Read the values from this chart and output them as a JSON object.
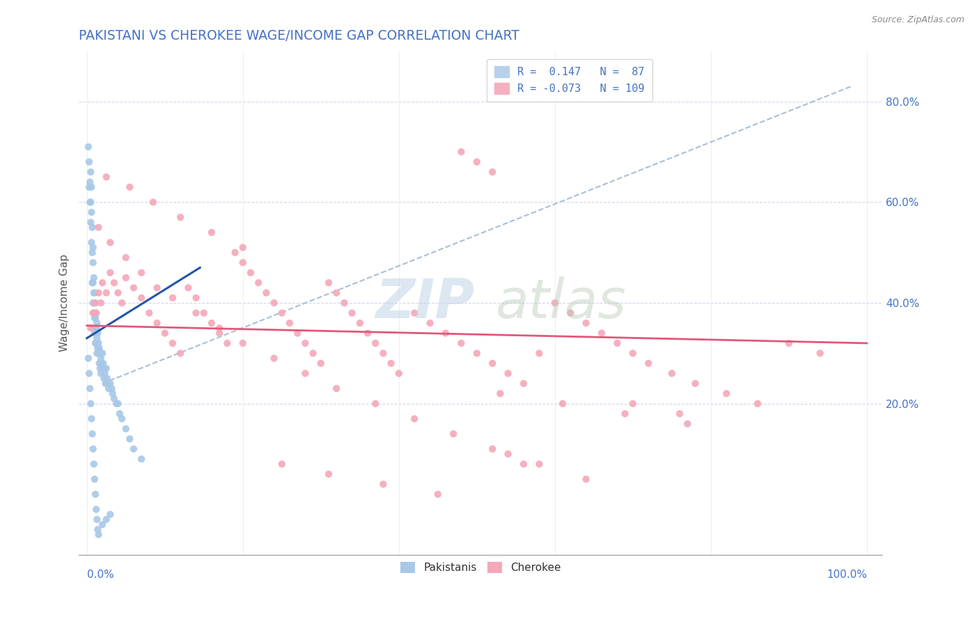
{
  "title": "PAKISTANI VS CHEROKEE WAGE/INCOME GAP CORRELATION CHART",
  "source_text": "Source: ZipAtlas.com",
  "ylabel": "Wage/Income Gap",
  "blue_R": 0.147,
  "blue_N": 87,
  "pink_R": -0.073,
  "pink_N": 109,
  "blue_scatter_color": "#a8c8e8",
  "pink_scatter_color": "#f4a8b8",
  "blue_line_color": "#2255aa",
  "pink_line_color": "#e05878",
  "dash_line_color": "#a0b8d0",
  "watermark_zip_color": "#b8cce0",
  "watermark_atlas_color": "#b0c8b0",
  "ytick_vals": [
    0.2,
    0.4,
    0.6,
    0.8
  ],
  "ytick_labels": [
    "20.0%",
    "40.0%",
    "60.0%",
    "80.0%"
  ],
  "xlim": [
    -0.01,
    1.02
  ],
  "ylim": [
    -0.1,
    0.9
  ],
  "blue_x": [
    0.002,
    0.003,
    0.003,
    0.004,
    0.004,
    0.005,
    0.005,
    0.005,
    0.006,
    0.006,
    0.006,
    0.007,
    0.007,
    0.007,
    0.008,
    0.008,
    0.008,
    0.008,
    0.009,
    0.009,
    0.009,
    0.01,
    0.01,
    0.01,
    0.01,
    0.011,
    0.011,
    0.011,
    0.011,
    0.012,
    0.012,
    0.012,
    0.013,
    0.013,
    0.013,
    0.014,
    0.014,
    0.015,
    0.015,
    0.016,
    0.016,
    0.017,
    0.017,
    0.018,
    0.018,
    0.019,
    0.02,
    0.02,
    0.021,
    0.022,
    0.022,
    0.023,
    0.024,
    0.025,
    0.025,
    0.026,
    0.027,
    0.028,
    0.03,
    0.032,
    0.033,
    0.035,
    0.038,
    0.04,
    0.042,
    0.045,
    0.05,
    0.055,
    0.06,
    0.07,
    0.002,
    0.003,
    0.004,
    0.005,
    0.006,
    0.007,
    0.008,
    0.009,
    0.01,
    0.011,
    0.012,
    0.013,
    0.014,
    0.015,
    0.02,
    0.025,
    0.03
  ],
  "blue_y": [
    0.71,
    0.68,
    0.63,
    0.64,
    0.6,
    0.66,
    0.6,
    0.56,
    0.63,
    0.58,
    0.52,
    0.55,
    0.5,
    0.44,
    0.51,
    0.48,
    0.44,
    0.4,
    0.45,
    0.42,
    0.38,
    0.42,
    0.4,
    0.37,
    0.34,
    0.4,
    0.37,
    0.35,
    0.32,
    0.38,
    0.35,
    0.32,
    0.36,
    0.33,
    0.3,
    0.34,
    0.31,
    0.32,
    0.3,
    0.31,
    0.28,
    0.3,
    0.27,
    0.29,
    0.26,
    0.28,
    0.3,
    0.27,
    0.28,
    0.27,
    0.25,
    0.26,
    0.24,
    0.27,
    0.24,
    0.25,
    0.24,
    0.23,
    0.24,
    0.23,
    0.22,
    0.21,
    0.2,
    0.2,
    0.18,
    0.17,
    0.15,
    0.13,
    0.11,
    0.09,
    0.29,
    0.26,
    0.23,
    0.2,
    0.17,
    0.14,
    0.11,
    0.08,
    0.05,
    0.02,
    -0.01,
    -0.03,
    -0.05,
    -0.06,
    -0.04,
    -0.03,
    -0.02
  ],
  "pink_x": [
    0.005,
    0.008,
    0.01,
    0.012,
    0.015,
    0.018,
    0.02,
    0.025,
    0.03,
    0.035,
    0.04,
    0.045,
    0.05,
    0.06,
    0.07,
    0.08,
    0.09,
    0.1,
    0.11,
    0.12,
    0.13,
    0.14,
    0.15,
    0.16,
    0.17,
    0.18,
    0.19,
    0.2,
    0.21,
    0.22,
    0.23,
    0.24,
    0.25,
    0.26,
    0.27,
    0.28,
    0.29,
    0.3,
    0.31,
    0.32,
    0.33,
    0.34,
    0.35,
    0.36,
    0.37,
    0.38,
    0.39,
    0.4,
    0.42,
    0.44,
    0.46,
    0.48,
    0.5,
    0.52,
    0.54,
    0.56,
    0.58,
    0.6,
    0.62,
    0.64,
    0.66,
    0.68,
    0.7,
    0.72,
    0.75,
    0.78,
    0.82,
    0.86,
    0.9,
    0.94,
    0.015,
    0.03,
    0.05,
    0.07,
    0.09,
    0.11,
    0.14,
    0.17,
    0.2,
    0.24,
    0.28,
    0.32,
    0.37,
    0.42,
    0.47,
    0.52,
    0.58,
    0.64,
    0.7,
    0.76,
    0.025,
    0.055,
    0.085,
    0.12,
    0.16,
    0.2,
    0.25,
    0.31,
    0.38,
    0.45,
    0.53,
    0.61,
    0.69,
    0.77,
    0.48,
    0.5,
    0.52,
    0.54,
    0.56
  ],
  "pink_y": [
    0.35,
    0.38,
    0.4,
    0.38,
    0.42,
    0.4,
    0.44,
    0.42,
    0.46,
    0.44,
    0.42,
    0.4,
    0.45,
    0.43,
    0.41,
    0.38,
    0.36,
    0.34,
    0.32,
    0.3,
    0.43,
    0.41,
    0.38,
    0.36,
    0.34,
    0.32,
    0.5,
    0.48,
    0.46,
    0.44,
    0.42,
    0.4,
    0.38,
    0.36,
    0.34,
    0.32,
    0.3,
    0.28,
    0.44,
    0.42,
    0.4,
    0.38,
    0.36,
    0.34,
    0.32,
    0.3,
    0.28,
    0.26,
    0.38,
    0.36,
    0.34,
    0.32,
    0.3,
    0.28,
    0.26,
    0.24,
    0.3,
    0.4,
    0.38,
    0.36,
    0.34,
    0.32,
    0.3,
    0.28,
    0.26,
    0.24,
    0.22,
    0.2,
    0.32,
    0.3,
    0.55,
    0.52,
    0.49,
    0.46,
    0.43,
    0.41,
    0.38,
    0.35,
    0.32,
    0.29,
    0.26,
    0.23,
    0.2,
    0.17,
    0.14,
    0.11,
    0.08,
    0.05,
    0.2,
    0.18,
    0.65,
    0.63,
    0.6,
    0.57,
    0.54,
    0.51,
    0.08,
    0.06,
    0.04,
    0.02,
    0.22,
    0.2,
    0.18,
    0.16,
    0.7,
    0.68,
    0.66,
    0.1,
    0.08
  ]
}
